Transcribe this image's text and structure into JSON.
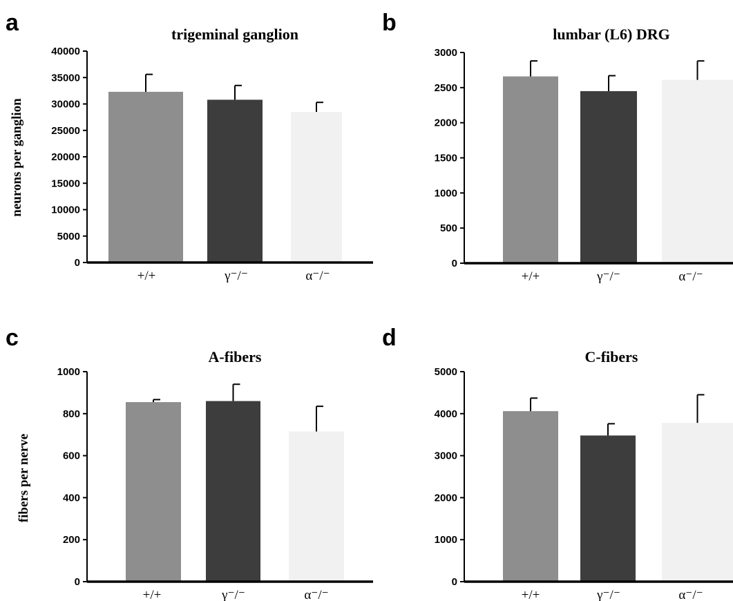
{
  "figure": {
    "panel_letters": [
      "a",
      "b",
      "c",
      "d"
    ],
    "ylabels": {
      "top": "neurons per ganglion",
      "bottom": "fibers per nerve"
    }
  },
  "colors": {
    "wildtype": "#8e8e8e",
    "gamma": "#3d3d3d",
    "alpha": "#f1f1f1",
    "axis": "#000000"
  },
  "chart_data": [
    {
      "type": "bar",
      "panel": "a",
      "title": "trigeminal ganglion",
      "ylabel": "neurons per ganglion",
      "categories": [
        "+/+",
        "γ⁻/⁻",
        "α⁻/⁻"
      ],
      "values": [
        32300,
        30800,
        28500
      ],
      "errors": [
        3300,
        2700,
        1800
      ],
      "ylim": [
        0,
        40000
      ],
      "yticks": [
        0,
        5000,
        10000,
        15000,
        20000,
        25000,
        30000,
        35000,
        40000
      ],
      "grid": false
    },
    {
      "type": "bar",
      "panel": "b",
      "title": "lumbar (L6) DRG",
      "ylabel": "",
      "categories": [
        "+/+",
        "γ⁻/⁻",
        "α⁻/⁻"
      ],
      "values": [
        2660,
        2450,
        2610
      ],
      "errors": [
        220,
        220,
        270
      ],
      "ylim": [
        0,
        3000
      ],
      "yticks": [
        0,
        500,
        1000,
        1500,
        2000,
        2500,
        3000
      ],
      "grid": false
    },
    {
      "type": "bar",
      "panel": "c",
      "title": "A-fibers",
      "ylabel": "fibers per nerve",
      "categories": [
        "+/+",
        "γ⁻/⁻",
        "α⁻/⁻"
      ],
      "values": [
        855,
        860,
        715
      ],
      "errors": [
        12,
        80,
        120
      ],
      "ylim": [
        0,
        1000
      ],
      "yticks": [
        0,
        200,
        400,
        600,
        800,
        1000
      ],
      "grid": false
    },
    {
      "type": "bar",
      "panel": "d",
      "title": "C-fibers",
      "ylabel": "",
      "categories": [
        "+/+",
        "γ⁻/⁻",
        "α⁻/⁻"
      ],
      "values": [
        4060,
        3480,
        3780
      ],
      "errors": [
        310,
        280,
        670
      ],
      "ylim": [
        0,
        5000
      ],
      "yticks": [
        0,
        1000,
        2000,
        3000,
        4000,
        5000
      ],
      "grid": false
    }
  ]
}
